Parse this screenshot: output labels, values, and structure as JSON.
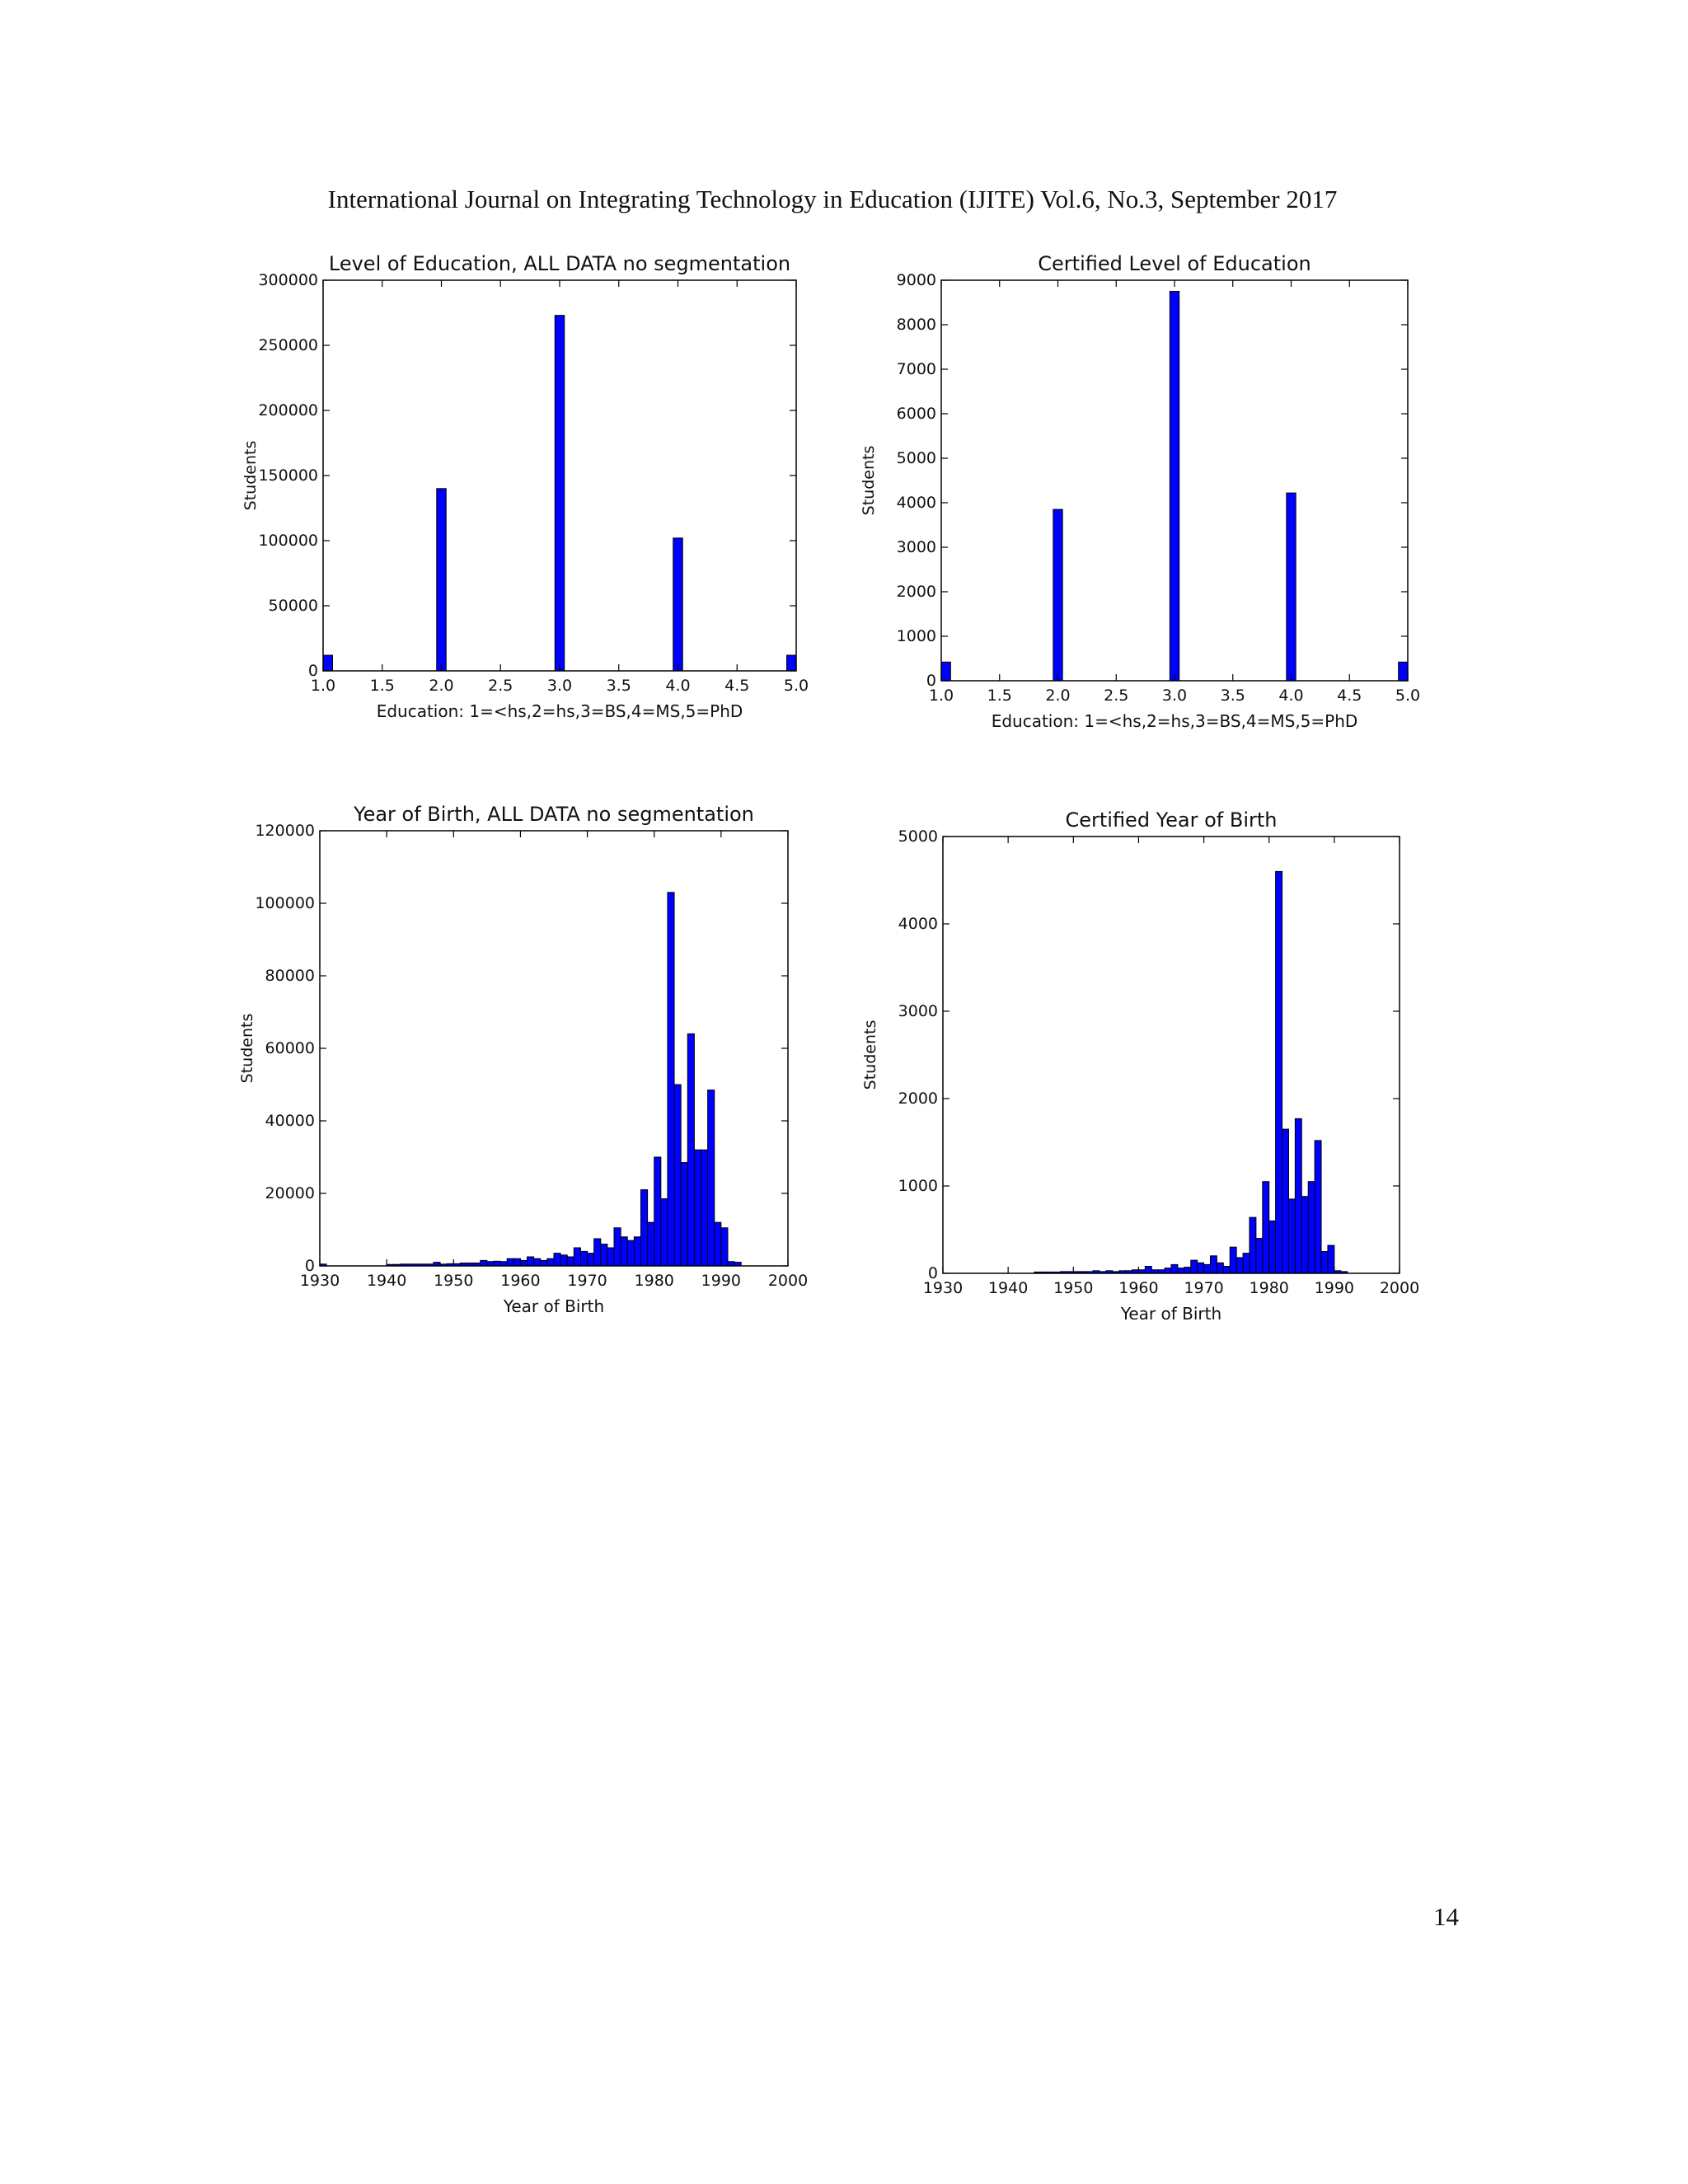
{
  "page": {
    "header": "International Journal on Integrating Technology in Education (IJITE) Vol.6, No.3, September 2017",
    "page_number": "14"
  },
  "colors": {
    "bar": "#0000ff",
    "bar_edge": "#000000",
    "axis": "#000000"
  },
  "chart_data": [
    {
      "type": "bar",
      "title": "Level of Education, ALL DATA no segmentation",
      "xlabel": "Education: 1=<hs,2=hs,3=BS,4=MS,5=PhD",
      "ylabel": "Students",
      "xlim": [
        1.0,
        5.0
      ],
      "ylim": [
        0,
        300000
      ],
      "xticks": [
        "1.0",
        "1.5",
        "2.0",
        "2.5",
        "3.0",
        "3.5",
        "4.0",
        "4.5",
        "5.0"
      ],
      "yticks": [
        "0",
        "50000",
        "100000",
        "150000",
        "200000",
        "250000",
        "300000"
      ],
      "x": [
        1.0,
        2.0,
        3.0,
        4.0,
        5.0
      ],
      "values": [
        12000,
        140000,
        273000,
        102000,
        12000
      ]
    },
    {
      "type": "bar",
      "title": "Certified Level of Education",
      "xlabel": "Education: 1=<hs,2=hs,3=BS,4=MS,5=PhD",
      "ylabel": "Students",
      "xlim": [
        1.0,
        5.0
      ],
      "ylim": [
        0,
        9000
      ],
      "xticks": [
        "1.0",
        "1.5",
        "2.0",
        "2.5",
        "3.0",
        "3.5",
        "4.0",
        "4.5",
        "5.0"
      ],
      "yticks": [
        "0",
        "1000",
        "2000",
        "3000",
        "4000",
        "5000",
        "6000",
        "7000",
        "8000",
        "9000"
      ],
      "x": [
        1.0,
        2.0,
        3.0,
        4.0,
        5.0
      ],
      "values": [
        420,
        3850,
        8750,
        4220,
        420
      ]
    },
    {
      "type": "bar",
      "title": "Year of Birth, ALL DATA no segmentation",
      "xlabel": "Year of Birth",
      "ylabel": "Students",
      "xlim": [
        1930,
        2000
      ],
      "ylim": [
        0,
        120000
      ],
      "xticks": [
        "1930",
        "1940",
        "1950",
        "1960",
        "1970",
        "1980",
        "1990",
        "2000"
      ],
      "yticks": [
        "0",
        "20000",
        "40000",
        "60000",
        "80000",
        "100000",
        "120000"
      ],
      "x": [
        1930,
        1931,
        1932,
        1933,
        1934,
        1935,
        1936,
        1937,
        1938,
        1939,
        1940,
        1941,
        1942,
        1943,
        1944,
        1945,
        1946,
        1947,
        1948,
        1949,
        1950,
        1951,
        1952,
        1953,
        1954,
        1955,
        1956,
        1957,
        1958,
        1959,
        1960,
        1961,
        1962,
        1963,
        1964,
        1965,
        1966,
        1967,
        1968,
        1969,
        1970,
        1971,
        1972,
        1973,
        1974,
        1975,
        1976,
        1977,
        1978,
        1979,
        1980,
        1981,
        1982,
        1983,
        1984,
        1985,
        1986,
        1987,
        1988,
        1989,
        1990,
        1991,
        1992,
        1993,
        1994,
        1995,
        1996,
        1997,
        1998,
        1999
      ],
      "values": [
        500,
        0,
        0,
        0,
        0,
        0,
        0,
        0,
        0,
        0,
        400,
        400,
        500,
        500,
        500,
        500,
        500,
        1000,
        500,
        600,
        600,
        800,
        800,
        800,
        1500,
        1200,
        1300,
        1200,
        2000,
        2000,
        1500,
        2500,
        2000,
        1500,
        2000,
        3500,
        3000,
        2500,
        5000,
        4000,
        3500,
        7500,
        6000,
        5000,
        10500,
        8000,
        7000,
        8000,
        21000,
        12000,
        30000,
        18500,
        103000,
        50000,
        28500,
        64000,
        32000,
        32000,
        48500,
        12000,
        10500,
        1200,
        1000,
        0,
        0,
        0,
        0,
        0,
        0,
        0
      ]
    },
    {
      "type": "bar",
      "title": "Certified Year of Birth",
      "xlabel": "Year of Birth",
      "ylabel": "Students",
      "xlim": [
        1930,
        2000
      ],
      "ylim": [
        0,
        5000
      ],
      "xticks": [
        "1930",
        "1940",
        "1950",
        "1960",
        "1970",
        "1980",
        "1990",
        "2000"
      ],
      "yticks": [
        "0",
        "1000",
        "2000",
        "3000",
        "4000",
        "5000"
      ],
      "x": [
        1930,
        1931,
        1932,
        1933,
        1934,
        1935,
        1936,
        1937,
        1938,
        1939,
        1940,
        1941,
        1942,
        1943,
        1944,
        1945,
        1946,
        1947,
        1948,
        1949,
        1950,
        1951,
        1952,
        1953,
        1954,
        1955,
        1956,
        1957,
        1958,
        1959,
        1960,
        1961,
        1962,
        1963,
        1964,
        1965,
        1966,
        1967,
        1968,
        1969,
        1970,
        1971,
        1972,
        1973,
        1974,
        1975,
        1976,
        1977,
        1978,
        1979,
        1980,
        1981,
        1982,
        1983,
        1984,
        1985,
        1986,
        1987,
        1988,
        1989,
        1990,
        1991,
        1992,
        1993,
        1994,
        1995,
        1996,
        1997,
        1998,
        1999
      ],
      "values": [
        0,
        0,
        0,
        0,
        0,
        0,
        0,
        0,
        0,
        0,
        0,
        0,
        0,
        0,
        15,
        15,
        15,
        15,
        20,
        20,
        20,
        20,
        20,
        30,
        20,
        30,
        20,
        30,
        30,
        40,
        40,
        80,
        40,
        40,
        60,
        100,
        60,
        70,
        150,
        120,
        100,
        200,
        120,
        80,
        300,
        180,
        230,
        640,
        400,
        1050,
        600,
        4600,
        1650,
        850,
        1770,
        880,
        1050,
        1520,
        250,
        320,
        30,
        20,
        0,
        0,
        0,
        0,
        0,
        0,
        0,
        0
      ]
    }
  ]
}
